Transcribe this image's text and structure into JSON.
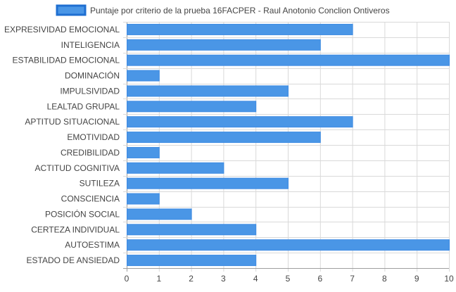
{
  "colors": {
    "bar_fill": "#4a96e6",
    "bar_stroke": "#3d8be3",
    "legend_stroke": "#1f6fd1",
    "grid": "#d9d9d9",
    "axis_line": "#9e9e9e",
    "text": "#444444"
  },
  "chart_data": {
    "type": "bar",
    "orientation": "horizontal",
    "categories": [
      "EXPRESIVIDAD EMOCIONAL",
      "INTELIGENCIA",
      "ESTABILIDAD EMOCIONAL",
      "DOMINACIÓN",
      "IMPULSIVIDAD",
      "LEALTAD GRUPAL",
      "APTITUD SITUACIONAL",
      "EMOTIVIDAD",
      "CREDIBILIDAD",
      "ACTITUD COGNITIVA",
      "SUTILEZA",
      "CONSCIENCIA",
      "POSICIÓN SOCIAL",
      "CERTEZA INDIVIDUAL",
      "AUTOESTIMA",
      "ESTADO DE ANSIEDAD"
    ],
    "series": [
      {
        "name": "Puntaje por criterio de la prueba 16FACPER - Raul Anotonio Conclion Ontiveros",
        "values": [
          7,
          6,
          10,
          1,
          5,
          4,
          7,
          6,
          1,
          3,
          5,
          1,
          2,
          4,
          10,
          4
        ]
      }
    ],
    "xlim": [
      0,
      10
    ],
    "xticks": [
      "0",
      "1",
      "2",
      "3",
      "4",
      "5",
      "6",
      "7",
      "8",
      "9",
      "10"
    ],
    "grid": true,
    "legend_position": "top"
  }
}
